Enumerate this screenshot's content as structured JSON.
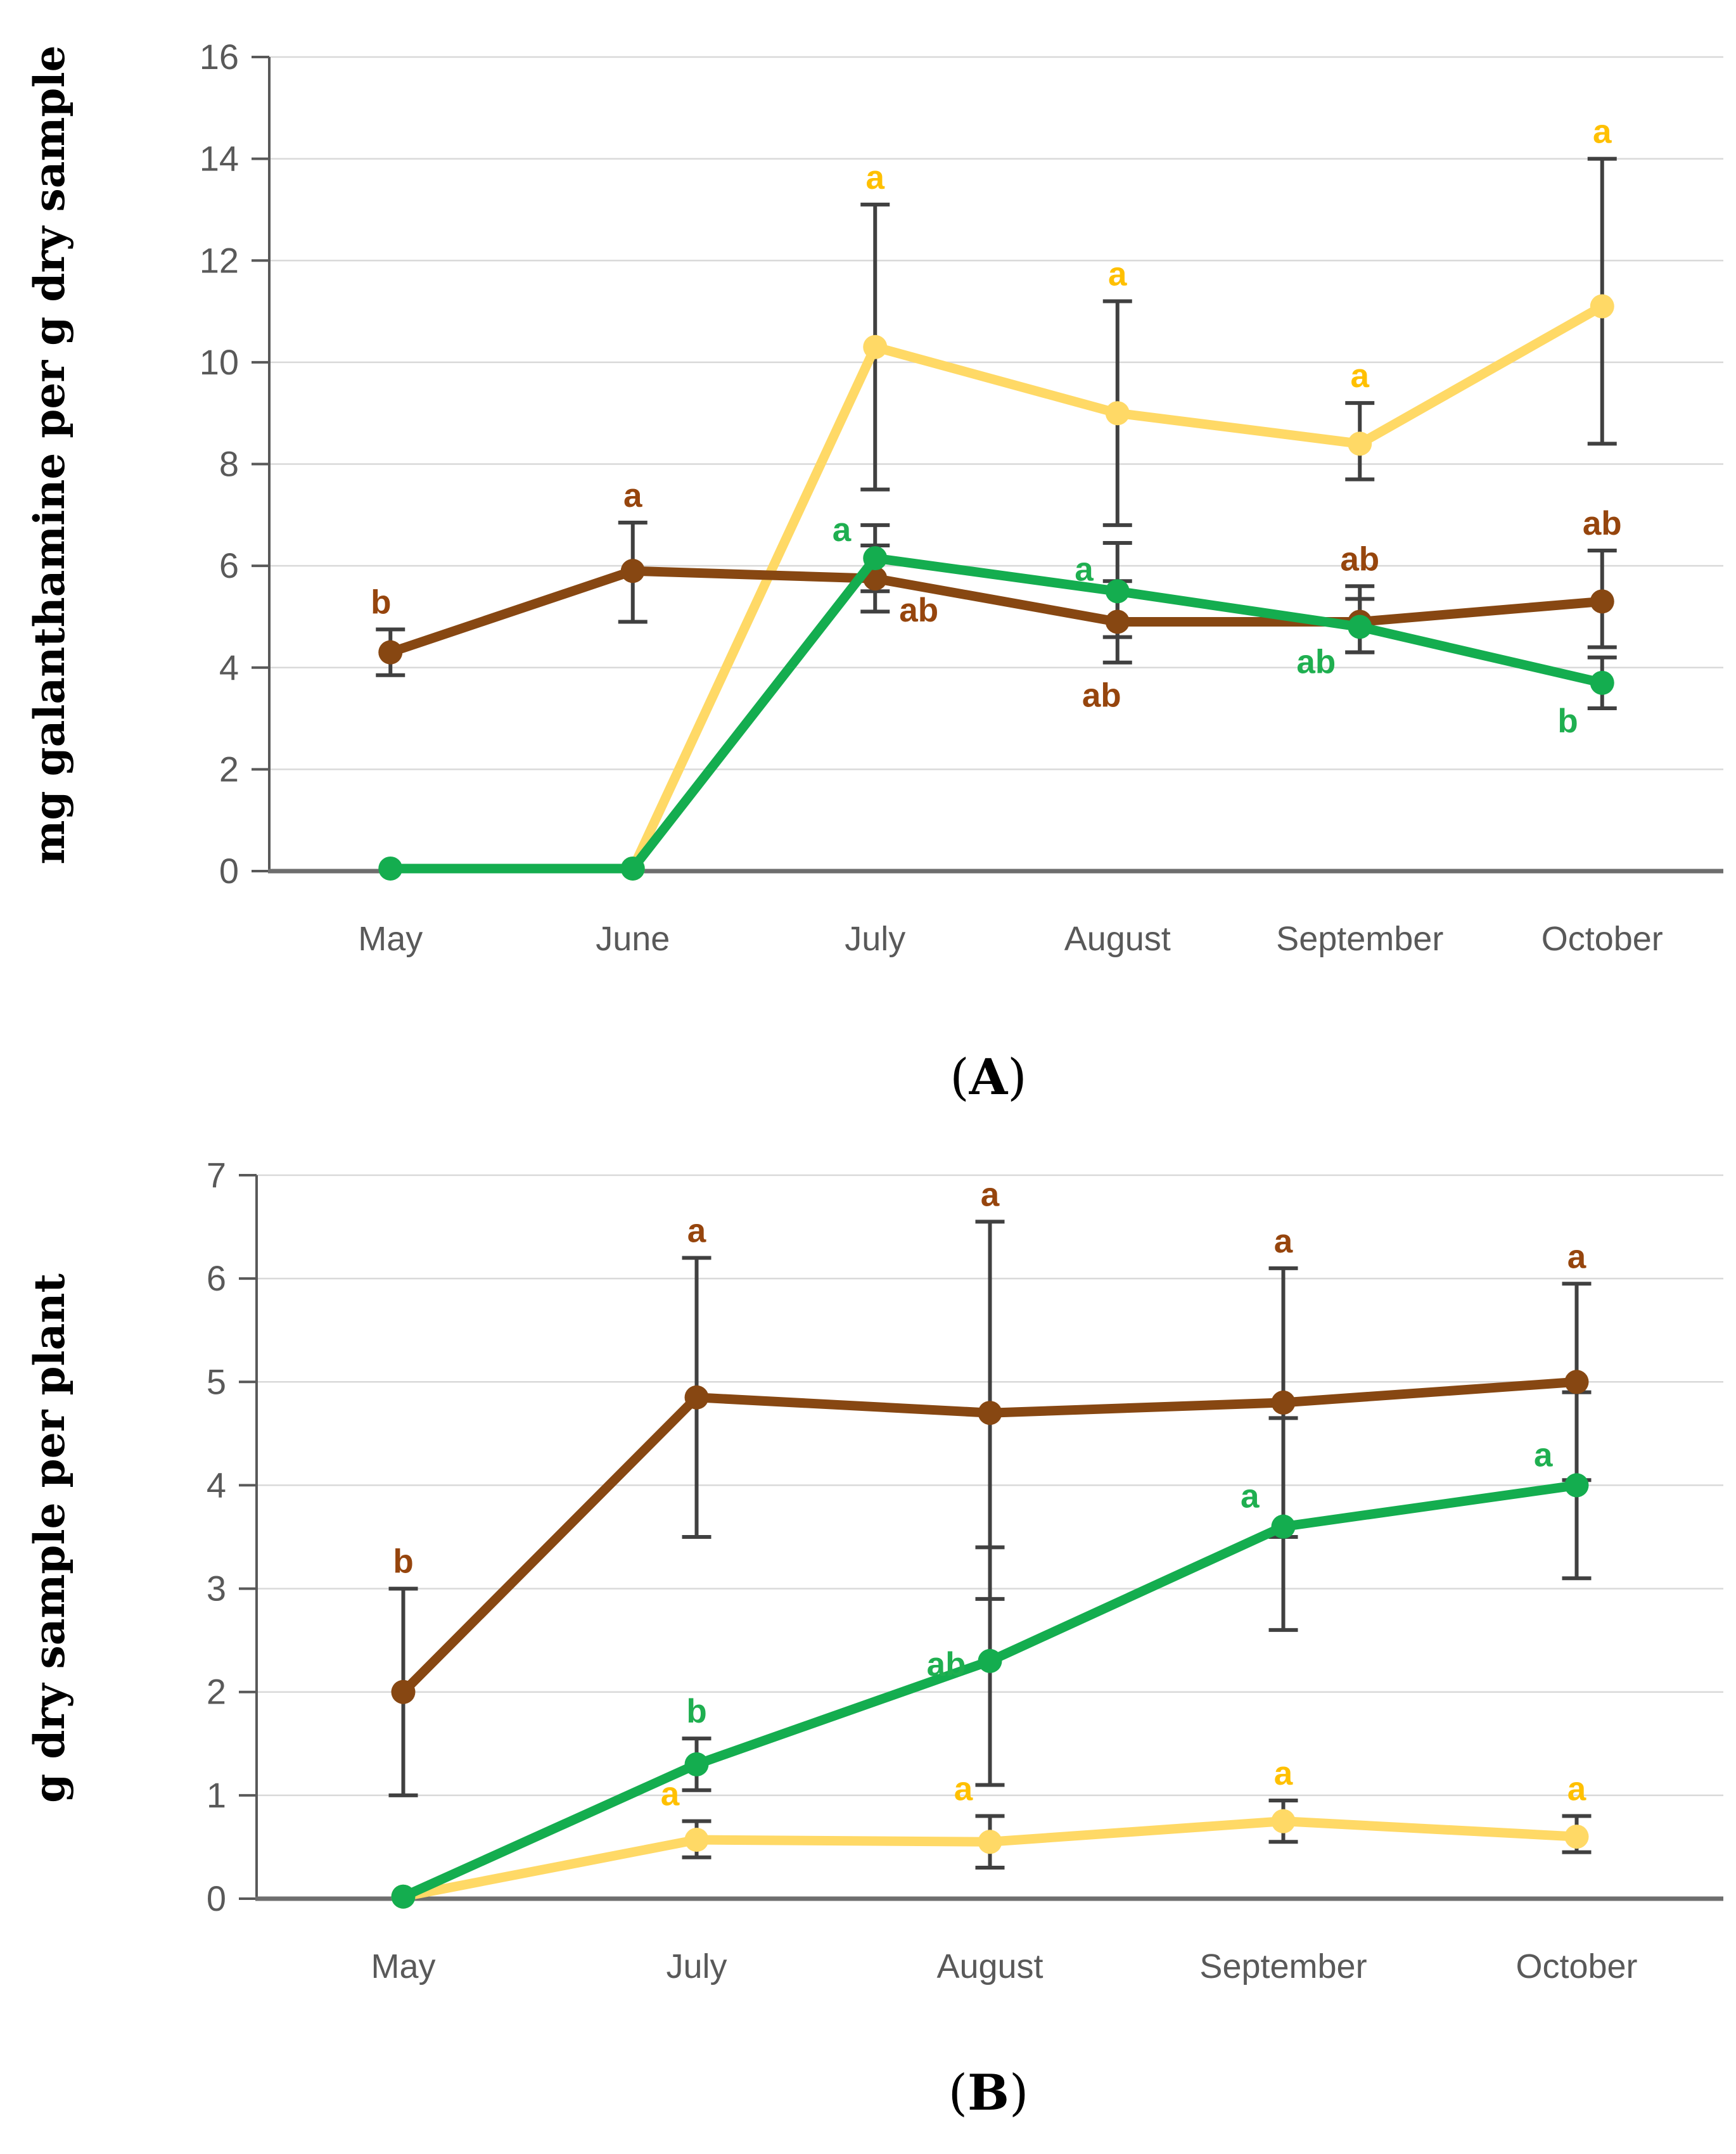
{
  "colors": {
    "brown": "#874712",
    "yellow": "#FFD966",
    "green": "#14AD4F",
    "label_brown": "#96450D",
    "label_yellow": "#FFC000",
    "label_green": "#1FAF50",
    "error_bar": "#404040",
    "gridline": "#D9D9D9",
    "axis_line": "#6E6E6E",
    "tick_text": "#595959"
  },
  "figure": {
    "caption_a": {
      "open": "(",
      "letter": "A",
      "close": ")"
    },
    "caption_b": {
      "open": "(",
      "letter": "B",
      "close": ")"
    },
    "ylabel_a": "mg galanthamine per g dry sample",
    "ylabel_b": "g dry sample per plant"
  },
  "chart_data": [
    {
      "id": "A",
      "type": "line",
      "ylabel": "mg galanthamine per g dry sample",
      "caption": "(A)",
      "categories": [
        "May",
        "June",
        "July",
        "August",
        "September",
        "October"
      ],
      "ylim": [
        0,
        16
      ],
      "yticks": [
        0,
        2,
        4,
        6,
        8,
        10,
        12,
        14,
        16
      ],
      "grid": true,
      "legend_position": "none",
      "series": [
        {
          "name": "yellow",
          "color_key": "yellow",
          "label_color_key": "label_yellow",
          "points": [
            null,
            {
              "y": 0.05
            },
            {
              "y": 10.3,
              "lo": 7.5,
              "hi": 13.1,
              "sig": "a",
              "pos": "above"
            },
            {
              "y": 9.0,
              "lo": 6.8,
              "hi": 11.2,
              "sig": "a",
              "pos": "above"
            },
            {
              "y": 8.4,
              "lo": 7.7,
              "hi": 9.2,
              "sig": "a",
              "pos": "above"
            },
            {
              "y": 11.1,
              "lo": 8.4,
              "hi": 14.0,
              "sig": "a",
              "pos": "above"
            }
          ]
        },
        {
          "name": "brown",
          "color_key": "brown",
          "label_color_key": "label_brown",
          "points": [
            {
              "y": 4.3,
              "lo": 3.85,
              "hi": 4.75,
              "sig": "b",
              "pos": "above",
              "dx": -15
            },
            {
              "y": 5.9,
              "lo": 4.9,
              "hi": 6.85,
              "sig": "a",
              "pos": "above"
            },
            {
              "y": 5.75,
              "lo": 5.1,
              "hi": 6.4,
              "sig": "ab",
              "pos": "right",
              "dy": 50
            },
            {
              "y": 4.9,
              "lo": 4.1,
              "hi": 5.7,
              "sig": "ab",
              "pos": "below",
              "dx": -25
            },
            {
              "y": 4.9,
              "lo": 4.3,
              "hi": 5.6,
              "sig": "ab",
              "pos": "above"
            },
            {
              "y": 5.3,
              "lo": 4.4,
              "hi": 6.3,
              "sig": "ab",
              "pos": "above"
            }
          ]
        },
        {
          "name": "green",
          "color_key": "green",
          "label_color_key": "label_green",
          "points": [
            {
              "y": 0.05
            },
            {
              "y": 0.05
            },
            {
              "y": 6.15,
              "lo": 5.5,
              "hi": 6.8,
              "sig": "a",
              "pos": "left",
              "dy": -45
            },
            {
              "y": 5.5,
              "lo": 4.6,
              "hi": 6.45,
              "sig": "a",
              "pos": "left",
              "dy": -35
            },
            {
              "y": 4.8,
              "lo": 4.3,
              "hi": 5.35,
              "sig": "ab",
              "pos": "left",
              "dy": 55
            },
            {
              "y": 3.7,
              "lo": 3.2,
              "hi": 4.2,
              "sig": "b",
              "pos": "left",
              "dy": 60
            }
          ]
        }
      ]
    },
    {
      "id": "B",
      "type": "line",
      "ylabel": "g dry sample per plant",
      "caption": "(B)",
      "categories": [
        "May",
        "July",
        "August",
        "September",
        "October"
      ],
      "ylim": [
        0,
        7
      ],
      "yticks": [
        0,
        1,
        2,
        3,
        4,
        5,
        6,
        7
      ],
      "grid": true,
      "legend_position": "none",
      "series": [
        {
          "name": "yellow",
          "color_key": "yellow",
          "label_color_key": "label_yellow",
          "points": [
            {
              "y": 0.02
            },
            {
              "y": 0.57,
              "lo": 0.4,
              "hi": 0.75,
              "sig": "a",
              "pos": "above",
              "dx": -42
            },
            {
              "y": 0.55,
              "lo": 0.3,
              "hi": 0.8,
              "sig": "a",
              "pos": "above",
              "dx": -42
            },
            {
              "y": 0.75,
              "lo": 0.55,
              "hi": 0.95,
              "sig": "a",
              "pos": "above"
            },
            {
              "y": 0.6,
              "lo": 0.45,
              "hi": 0.8,
              "sig": "a",
              "pos": "above"
            }
          ]
        },
        {
          "name": "brown",
          "color_key": "brown",
          "label_color_key": "label_brown",
          "points": [
            {
              "y": 2.0,
              "lo": 1.0,
              "hi": 3.0,
              "sig": "b",
              "pos": "above"
            },
            {
              "y": 4.85,
              "lo": 3.5,
              "hi": 6.2,
              "sig": "a",
              "pos": "above"
            },
            {
              "y": 4.7,
              "lo": 2.9,
              "hi": 6.55,
              "sig": "a",
              "pos": "above"
            },
            {
              "y": 4.8,
              "lo": 3.5,
              "hi": 6.1,
              "sig": "a",
              "pos": "above"
            },
            {
              "y": 5.0,
              "lo": 4.05,
              "hi": 5.95,
              "sig": "a",
              "pos": "above"
            }
          ]
        },
        {
          "name": "green",
          "color_key": "green",
          "label_color_key": "label_green",
          "points": [
            {
              "y": 0.02
            },
            {
              "y": 1.3,
              "lo": 1.05,
              "hi": 1.55,
              "sig": "b",
              "pos": "above"
            },
            {
              "y": 2.3,
              "lo": 1.1,
              "hi": 3.4,
              "sig": "ab",
              "pos": "left",
              "dy": 5
            },
            {
              "y": 3.6,
              "lo": 2.6,
              "hi": 4.65,
              "sig": "a",
              "pos": "left",
              "dy": -48
            },
            {
              "y": 4.0,
              "lo": 3.1,
              "hi": 4.9,
              "sig": "a",
              "pos": "left",
              "dy": -48
            }
          ]
        }
      ]
    }
  ]
}
